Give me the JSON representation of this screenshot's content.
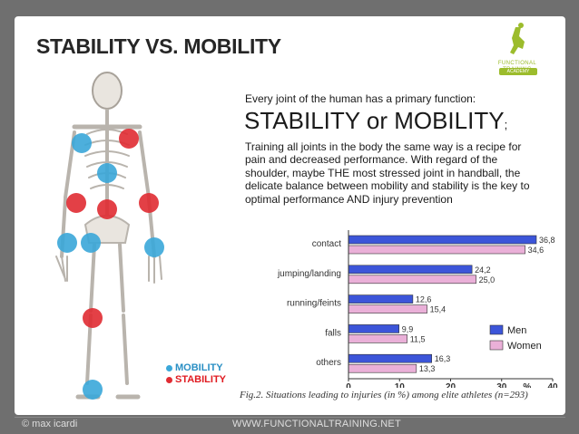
{
  "slide": {
    "title": "STABILITY VS. MOBILITY",
    "intro": "Every joint of the human has a primary function:",
    "headline": "STABILITY or MOBILITY",
    "headline_suffix": ";",
    "body": "Training all joints in the body the same way is a recipe for pain and decreased performance. With regard of the shoulder, maybe THE most stressed joint in handball, the delicate balance between mobility and stability is the key to optimal performance AND injury prevention",
    "image_legend": {
      "mobility": "MOBILITY",
      "stability": "STABILITY"
    },
    "logo": {
      "name": "FUNCTIONAL TRAINING",
      "sub": "ACADEMY"
    },
    "caption": "Fig.2. Situations leading to injuries (in %) among elite athletes (n=293)",
    "footer_left": "© max icardi",
    "footer_right": "WWW.FUNCTIONALTRAINING.NET"
  },
  "colors": {
    "mobility": "#3aa7d9",
    "stability": "#e02c33",
    "men": "#3c55d9",
    "women": "#eab0d8",
    "logo_green": "#9cbc2c"
  },
  "chart_data": {
    "type": "bar",
    "orientation": "horizontal",
    "categories": [
      "contact",
      "jumping/landing",
      "running/feints",
      "falls",
      "others"
    ],
    "series": [
      {
        "name": "Men",
        "values": [
          36.8,
          24.2,
          12.6,
          9.9,
          16.3
        ],
        "labels": [
          "36,8",
          "24,2",
          "12,6",
          "9,9",
          "16,3"
        ]
      },
      {
        "name": "Women",
        "values": [
          34.6,
          25.0,
          15.4,
          11.5,
          13.3
        ],
        "labels": [
          "34,6",
          "25,0",
          "15,4",
          "11,5",
          "13,3"
        ]
      }
    ],
    "xlim": [
      0,
      40
    ],
    "xticks": [
      "0",
      "10",
      "20",
      "30",
      "%",
      "40"
    ],
    "legend_position": "right",
    "grid": false
  }
}
